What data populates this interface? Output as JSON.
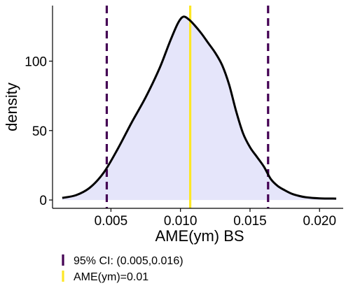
{
  "chart_data": {
    "type": "area",
    "xlabel": "AME(ym) BS",
    "ylabel": "density",
    "xlim": [
      0.0008,
      0.0217
    ],
    "ylim": [
      -6,
      140
    ],
    "x_ticks": [
      0.005,
      0.01,
      0.015,
      0.02
    ],
    "x_tick_labels": [
      "0.005",
      "0.010",
      "0.015",
      "0.020"
    ],
    "y_ticks": [
      0,
      50,
      100
    ],
    "y_tick_labels": [
      "0",
      "50",
      "100"
    ],
    "grid": false,
    "legend_position": "bottom",
    "density_fill_color": "#e5e5fa",
    "density_line_color": "#000000",
    "density": {
      "x": [
        0.0015,
        0.0025,
        0.0035,
        0.0045,
        0.0055,
        0.0065,
        0.0075,
        0.0085,
        0.0092,
        0.0098,
        0.0102,
        0.0106,
        0.011,
        0.0115,
        0.012,
        0.0125,
        0.013,
        0.0135,
        0.014,
        0.0145,
        0.015,
        0.0155,
        0.016,
        0.0165,
        0.017,
        0.0175,
        0.018,
        0.0185,
        0.019,
        0.02,
        0.0212
      ],
      "y": [
        1.5,
        3.5,
        9,
        20,
        37,
        56,
        74,
        95,
        113,
        127,
        132,
        130,
        126,
        120,
        113,
        106,
        97,
        83,
        64,
        48,
        38,
        31,
        24,
        15,
        10,
        7,
        4.5,
        3,
        2,
        1.2,
        1
      ]
    },
    "reference_lines": [
      {
        "name": "95% CI: (0.005,0.016)",
        "x": [
          0.0047,
          0.0163
        ],
        "color": "#440154",
        "style": "dashed"
      },
      {
        "name": "AME(ym)=0.01",
        "x": [
          0.0107
        ],
        "color": "#fde725",
        "style": "solid"
      }
    ]
  }
}
